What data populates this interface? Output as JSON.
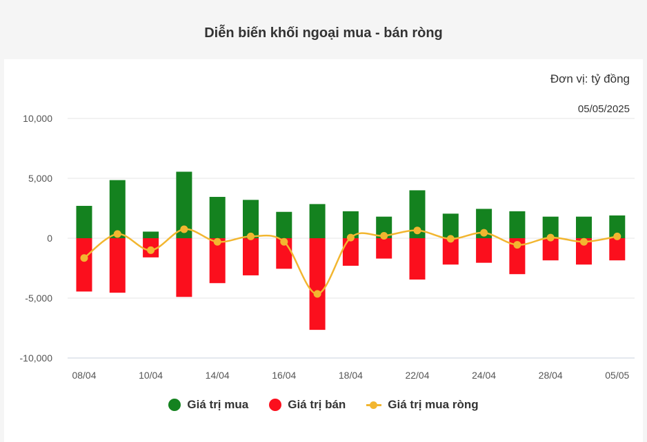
{
  "chart_data": {
    "type": "bar",
    "title": "Diễn biến khối ngoại mua - bán ròng",
    "unit": "Đơn vị: tỷ đồng",
    "date": "05/05/2025",
    "yticks": [
      10000,
      5000,
      0,
      -5000,
      -10000
    ],
    "ytick_labels": [
      "10,000",
      "5,000",
      "0",
      "-5,000",
      "-10,000"
    ],
    "ylim": [
      -10000,
      10000
    ],
    "xtick_labels": [
      {
        "index": 0,
        "label": "08/04"
      },
      {
        "index": 2,
        "label": "10/04"
      },
      {
        "index": 4,
        "label": "14/04"
      },
      {
        "index": 6,
        "label": "16/04"
      },
      {
        "index": 8,
        "label": "18/04"
      },
      {
        "index": 10,
        "label": "22/04"
      },
      {
        "index": 12,
        "label": "24/04"
      },
      {
        "index": 14,
        "label": "28/04"
      },
      {
        "index": 16,
        "label": "05/05"
      }
    ],
    "grid": true,
    "legend_position": "bottom",
    "series": [
      {
        "name": "Giá trị mua",
        "color": "#14821f",
        "values": [
          2700,
          4850,
          550,
          5550,
          3450,
          3200,
          2200,
          2850,
          2250,
          1800,
          4000,
          2050,
          2450,
          2250,
          1800,
          1800,
          1900
        ]
      },
      {
        "name": "Giá trị bán",
        "color": "#fb0f1d",
        "values": [
          -4450,
          -4550,
          -1600,
          -4900,
          -3750,
          -3100,
          -2550,
          -7650,
          -2300,
          -1700,
          -3450,
          -2200,
          -2050,
          -3000,
          -1850,
          -2200,
          -1850
        ]
      },
      {
        "name": "Giá trị mua ròng",
        "color": "#f2b630",
        "values": [
          -1650,
          350,
          -1000,
          750,
          -300,
          150,
          -300,
          -4650,
          50,
          200,
          650,
          -50,
          450,
          -550,
          50,
          -300,
          150
        ]
      }
    ]
  }
}
